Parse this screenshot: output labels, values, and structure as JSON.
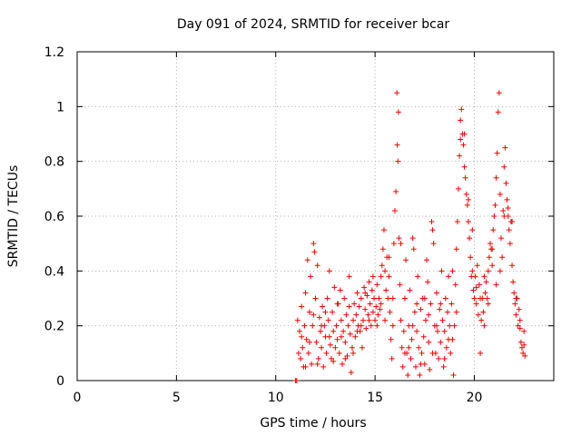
{
  "chart_data": {
    "type": "scatter",
    "title": "Day 091 of 2024, SRMTID for receiver bcar",
    "xlabel": "GPS time / hours",
    "ylabel": "SRMTID / TECUs",
    "xlim": [
      0,
      24
    ],
    "ylim": [
      0,
      1.2
    ],
    "x_ticks": [
      0,
      5,
      10,
      15,
      20
    ],
    "x_tick_labels": [
      "0",
      "5",
      "10",
      "15",
      "20"
    ],
    "y_ticks": [
      0,
      0.2,
      0.4,
      0.6,
      0.8,
      1.0,
      1.2
    ],
    "y_tick_labels": [
      "0",
      "0.2",
      "0.4",
      "0.6",
      "0.8",
      "1",
      "1.2"
    ],
    "grid": true,
    "marker": "plus",
    "color": "#ff0000",
    "series": [
      {
        "name": "bcar",
        "points": [
          [
            11.0,
            0.0
          ],
          [
            11.05,
            0.0
          ],
          [
            11.1,
            0.22
          ],
          [
            11.15,
            0.1
          ],
          [
            11.2,
            0.18
          ],
          [
            11.25,
            0.08
          ],
          [
            11.3,
            0.27
          ],
          [
            11.35,
            0.12
          ],
          [
            11.4,
            0.05
          ],
          [
            11.45,
            0.2
          ],
          [
            11.5,
            0.32
          ],
          [
            11.55,
            0.15
          ],
          [
            11.6,
            0.44
          ],
          [
            11.65,
            0.1
          ],
          [
            11.7,
            0.25
          ],
          [
            11.75,
            0.38
          ],
          [
            11.8,
            0.06
          ],
          [
            11.85,
            0.2
          ],
          [
            11.9,
            0.5
          ],
          [
            11.95,
            0.47
          ],
          [
            12.0,
            0.3
          ],
          [
            12.05,
            0.14
          ],
          [
            12.1,
            0.42
          ],
          [
            12.15,
            0.08
          ],
          [
            12.2,
            0.23
          ],
          [
            12.25,
            0.18
          ],
          [
            12.3,
            0.12
          ],
          [
            12.35,
            0.27
          ],
          [
            12.4,
            0.05
          ],
          [
            12.45,
            0.2
          ],
          [
            12.5,
            0.16
          ],
          [
            12.55,
            0.1
          ],
          [
            12.6,
            0.3
          ],
          [
            12.65,
            0.22
          ],
          [
            12.7,
            0.4
          ],
          [
            12.75,
            0.13
          ],
          [
            12.8,
            0.08
          ],
          [
            12.85,
            0.25
          ],
          [
            12.9,
            0.18
          ],
          [
            12.95,
            0.34
          ],
          [
            13.0,
            0.12
          ],
          [
            13.05,
            0.2
          ],
          [
            13.1,
            0.15
          ],
          [
            13.15,
            0.28
          ],
          [
            13.2,
            0.1
          ],
          [
            13.25,
            0.33
          ],
          [
            13.3,
            0.22
          ],
          [
            13.35,
            0.06
          ],
          [
            13.4,
            0.18
          ],
          [
            13.45,
            0.3
          ],
          [
            13.5,
            0.14
          ],
          [
            13.55,
            0.24
          ],
          [
            13.6,
            0.09
          ],
          [
            13.65,
            0.2
          ],
          [
            13.7,
            0.38
          ],
          [
            13.75,
            0.17
          ],
          [
            13.8,
            0.03
          ],
          [
            13.85,
            0.12
          ],
          [
            13.9,
            0.22
          ],
          [
            13.95,
            0.28
          ],
          [
            14.0,
            0.16
          ],
          [
            14.05,
            0.24
          ],
          [
            14.1,
            0.32
          ],
          [
            14.15,
            0.2
          ],
          [
            14.2,
            0.27
          ],
          [
            14.25,
            0.18
          ],
          [
            14.3,
            0.3
          ],
          [
            14.35,
            0.12
          ],
          [
            14.4,
            0.22
          ],
          [
            14.45,
            0.34
          ],
          [
            14.5,
            0.26
          ],
          [
            14.55,
            0.19
          ],
          [
            14.6,
            0.31
          ],
          [
            14.65,
            0.24
          ],
          [
            14.7,
            0.36
          ],
          [
            14.75,
            0.28
          ],
          [
            14.8,
            0.2
          ],
          [
            14.85,
            0.33
          ],
          [
            14.9,
            0.25
          ],
          [
            14.95,
            0.3
          ],
          [
            15.0,
            0.22
          ],
          [
            15.05,
            0.27
          ],
          [
            15.1,
            0.35
          ],
          [
            15.15,
            0.24
          ],
          [
            15.2,
            0.3
          ],
          [
            15.25,
            0.26
          ],
          [
            15.3,
            0.38
          ],
          [
            15.35,
            0.42
          ],
          [
            15.4,
            0.48
          ],
          [
            15.45,
            0.55
          ],
          [
            15.5,
            0.4
          ],
          [
            15.55,
            0.33
          ],
          [
            15.6,
            0.45
          ],
          [
            15.65,
            0.3
          ],
          [
            15.7,
            0.38
          ],
          [
            15.75,
            0.25
          ],
          [
            15.8,
            0.15
          ],
          [
            15.85,
            0.08
          ],
          [
            15.9,
            0.2
          ],
          [
            15.95,
            0.5
          ],
          [
            16.0,
            0.62
          ],
          [
            16.05,
            0.69
          ],
          [
            16.1,
            1.05
          ],
          [
            16.12,
            0.86
          ],
          [
            16.15,
            0.8
          ],
          [
            16.18,
            0.98
          ],
          [
            16.2,
            0.52
          ],
          [
            16.25,
            0.35
          ],
          [
            16.3,
            0.22
          ],
          [
            16.35,
            0.12
          ],
          [
            16.4,
            0.05
          ],
          [
            16.45,
            0.18
          ],
          [
            16.5,
            0.3
          ],
          [
            16.55,
            0.44
          ],
          [
            16.6,
            0.1
          ],
          [
            16.65,
            0.02
          ],
          [
            16.7,
            0.2
          ],
          [
            16.75,
            0.33
          ],
          [
            16.8,
            0.08
          ],
          [
            16.85,
            0.15
          ],
          [
            16.9,
            0.52
          ],
          [
            16.95,
            0.48
          ],
          [
            17.0,
            0.25
          ],
          [
            17.05,
            0.05
          ],
          [
            17.1,
            0.18
          ],
          [
            17.15,
            0.38
          ],
          [
            17.2,
            0.12
          ],
          [
            17.25,
            0.02
          ],
          [
            17.3,
            0.26
          ],
          [
            17.35,
            0.1
          ],
          [
            17.4,
            0.3
          ],
          [
            17.45,
            0.16
          ],
          [
            17.5,
            0.06
          ],
          [
            17.55,
            0.22
          ],
          [
            17.6,
            0.44
          ],
          [
            17.65,
            0.36
          ],
          [
            17.7,
            0.14
          ],
          [
            17.75,
            0.04
          ],
          [
            17.8,
            0.28
          ],
          [
            17.85,
            0.58
          ],
          [
            17.9,
            0.55
          ],
          [
            17.95,
            0.5
          ],
          [
            18.0,
            0.2
          ],
          [
            18.05,
            0.1
          ],
          [
            18.1,
            0.32
          ],
          [
            18.15,
            0.18
          ],
          [
            18.2,
            0.08
          ],
          [
            18.25,
            0.26
          ],
          [
            18.3,
            0.14
          ],
          [
            18.35,
            0.4
          ],
          [
            18.4,
            0.22
          ],
          [
            18.45,
            0.05
          ],
          [
            18.5,
            0.18
          ],
          [
            18.55,
            0.3
          ],
          [
            18.6,
            0.12
          ],
          [
            18.65,
            0.25
          ],
          [
            18.7,
            0.38
          ],
          [
            18.75,
            0.2
          ],
          [
            18.8,
            0.1
          ],
          [
            18.85,
            0.28
          ],
          [
            18.9,
            0.15
          ],
          [
            18.95,
            0.02
          ],
          [
            19.0,
            0.2
          ],
          [
            19.05,
            0.35
          ],
          [
            19.1,
            0.48
          ],
          [
            19.15,
            0.58
          ],
          [
            19.2,
            0.7
          ],
          [
            19.25,
            0.82
          ],
          [
            19.3,
            0.95
          ],
          [
            19.35,
            0.99
          ],
          [
            19.4,
            0.9
          ],
          [
            19.45,
            0.86
          ],
          [
            19.5,
            0.78
          ],
          [
            19.55,
            0.74
          ],
          [
            19.6,
            0.68
          ],
          [
            19.65,
            0.64
          ],
          [
            19.7,
            0.58
          ],
          [
            19.75,
            0.52
          ],
          [
            19.8,
            0.45
          ],
          [
            19.85,
            0.38
          ],
          [
            19.9,
            0.4
          ],
          [
            19.95,
            0.33
          ],
          [
            20.0,
            0.3
          ],
          [
            20.05,
            0.38
          ],
          [
            20.1,
            0.28
          ],
          [
            20.15,
            0.42
          ],
          [
            20.2,
            0.24
          ],
          [
            20.25,
            0.35
          ],
          [
            20.3,
            0.1
          ],
          [
            20.35,
            0.22
          ],
          [
            20.4,
            0.3
          ],
          [
            20.45,
            0.25
          ],
          [
            20.5,
            0.38
          ],
          [
            20.55,
            0.32
          ],
          [
            20.6,
            0.36
          ],
          [
            20.65,
            0.3
          ],
          [
            20.7,
            0.4
          ],
          [
            20.75,
            0.45
          ],
          [
            20.8,
            0.5
          ],
          [
            20.85,
            0.48
          ],
          [
            20.9,
            0.42
          ],
          [
            20.95,
            0.55
          ],
          [
            21.0,
            0.6
          ],
          [
            21.05,
            0.64
          ],
          [
            21.1,
            0.74
          ],
          [
            21.15,
            0.83
          ],
          [
            21.2,
            0.98
          ],
          [
            21.25,
            1.05
          ],
          [
            21.3,
            0.68
          ],
          [
            21.35,
            0.52
          ],
          [
            21.4,
            0.45
          ],
          [
            21.45,
            0.62
          ],
          [
            21.5,
            0.78
          ],
          [
            21.55,
            0.85
          ],
          [
            21.6,
            0.72
          ],
          [
            21.65,
            0.66
          ],
          [
            21.7,
            0.6
          ],
          [
            21.75,
            0.55
          ],
          [
            21.8,
            0.5
          ],
          [
            21.85,
            0.58
          ],
          [
            21.9,
            0.42
          ],
          [
            21.95,
            0.36
          ],
          [
            22.0,
            0.32
          ],
          [
            22.05,
            0.28
          ],
          [
            22.1,
            0.24
          ],
          [
            22.15,
            0.3
          ],
          [
            22.2,
            0.2
          ],
          [
            22.25,
            0.26
          ],
          [
            22.3,
            0.19
          ],
          [
            22.35,
            0.14
          ],
          [
            22.4,
            0.12
          ],
          [
            22.45,
            0.1
          ],
          [
            22.5,
            0.13
          ],
          [
            22.55,
            0.09
          ],
          [
            11.3,
            0.16
          ],
          [
            11.5,
            0.05
          ],
          [
            11.7,
            0.14
          ],
          [
            11.9,
            0.24
          ],
          [
            12.1,
            0.06
          ],
          [
            12.3,
            0.2
          ],
          [
            12.5,
            0.25
          ],
          [
            12.7,
            0.16
          ],
          [
            12.9,
            0.07
          ],
          [
            13.1,
            0.28
          ],
          [
            13.3,
            0.16
          ],
          [
            13.5,
            0.08
          ],
          [
            13.7,
            0.27
          ],
          [
            13.9,
            0.1
          ],
          [
            14.1,
            0.18
          ],
          [
            14.3,
            0.2
          ],
          [
            14.5,
            0.32
          ],
          [
            14.7,
            0.22
          ],
          [
            14.9,
            0.38
          ],
          [
            15.1,
            0.2
          ],
          [
            15.3,
            0.28
          ],
          [
            15.5,
            0.22
          ],
          [
            15.7,
            0.45
          ],
          [
            15.9,
            0.3
          ],
          [
            16.3,
            0.5
          ],
          [
            16.5,
            0.1
          ],
          [
            16.7,
            0.12
          ],
          [
            16.9,
            0.2
          ],
          [
            17.1,
            0.28
          ],
          [
            17.3,
            0.06
          ],
          [
            17.5,
            0.3
          ],
          [
            17.7,
            0.24
          ],
          [
            17.9,
            0.1
          ],
          [
            18.1,
            0.2
          ],
          [
            18.3,
            0.28
          ],
          [
            18.5,
            0.08
          ],
          [
            18.7,
            0.15
          ],
          [
            18.9,
            0.4
          ],
          [
            19.1,
            0.25
          ],
          [
            19.3,
            0.88
          ],
          [
            19.5,
            0.9
          ],
          [
            19.7,
            0.66
          ],
          [
            19.9,
            0.55
          ],
          [
            20.1,
            0.34
          ],
          [
            20.3,
            0.3
          ],
          [
            20.5,
            0.2
          ],
          [
            20.7,
            0.28
          ],
          [
            20.9,
            0.48
          ],
          [
            21.1,
            0.35
          ],
          [
            21.3,
            0.4
          ],
          [
            21.5,
            0.6
          ],
          [
            21.7,
            0.63
          ],
          [
            21.9,
            0.58
          ],
          [
            22.1,
            0.3
          ],
          [
            22.3,
            0.22
          ],
          [
            22.5,
            0.18
          ]
        ]
      }
    ]
  }
}
